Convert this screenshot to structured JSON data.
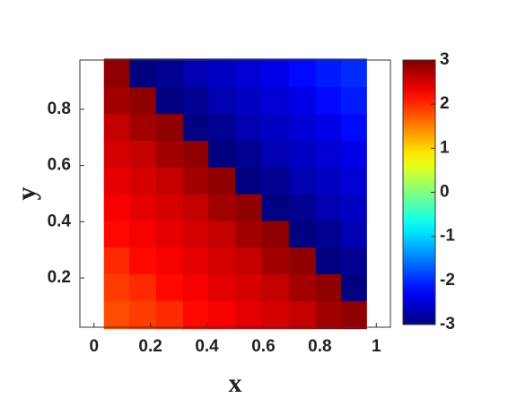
{
  "chart_data": {
    "type": "heatmap",
    "x_label": "x",
    "y_label": "y",
    "x": [
      0.08,
      0.17,
      0.27,
      0.36,
      0.45,
      0.55,
      0.64,
      0.74,
      0.83,
      0.92
    ],
    "y": [
      0.07,
      0.17,
      0.26,
      0.36,
      0.45,
      0.55,
      0.64,
      0.74,
      0.83,
      0.93
    ],
    "z": [
      [
        1.8,
        1.9,
        2.0,
        2.2,
        2.3,
        2.4,
        2.5,
        2.6,
        2.8,
        2.9
      ],
      [
        1.9,
        2.0,
        2.2,
        2.3,
        2.4,
        2.5,
        2.6,
        2.8,
        2.9,
        -3.0
      ],
      [
        2.0,
        2.2,
        2.3,
        2.4,
        2.5,
        2.6,
        2.8,
        2.9,
        -3.0,
        -2.9
      ],
      [
        2.2,
        2.3,
        2.4,
        2.5,
        2.6,
        2.8,
        2.9,
        -3.0,
        -2.9,
        -2.7
      ],
      [
        2.3,
        2.4,
        2.5,
        2.6,
        2.8,
        2.9,
        -3.0,
        -2.9,
        -2.7,
        -2.6
      ],
      [
        2.4,
        2.5,
        2.6,
        2.8,
        2.9,
        -3.0,
        -2.9,
        -2.7,
        -2.6,
        -2.5
      ],
      [
        2.5,
        2.6,
        2.8,
        2.9,
        -3.0,
        -2.9,
        -2.7,
        -2.6,
        -2.5,
        -2.4
      ],
      [
        2.6,
        2.8,
        2.9,
        -3.0,
        -2.9,
        -2.7,
        -2.6,
        -2.5,
        -2.4,
        -2.2
      ],
      [
        2.8,
        2.9,
        -3.0,
        -2.9,
        -2.7,
        -2.6,
        -2.5,
        -2.4,
        -2.2,
        -2.1
      ],
      [
        2.9,
        -3.0,
        -2.9,
        -2.7,
        -2.6,
        -2.5,
        -2.4,
        -2.2,
        -2.1,
        -2.0
      ]
    ],
    "colormap": "jet",
    "xlim": [
      -0.05,
      1.05
    ],
    "xticks": [
      0,
      0.2,
      0.4,
      0.6,
      0.8,
      1
    ],
    "ylim": [
      0.025,
      0.975
    ],
    "yticks": [
      0.2,
      0.4,
      0.6,
      0.8
    ],
    "zlim": [
      -3,
      3
    ],
    "zticks": [
      -3,
      -2,
      -1,
      0,
      1,
      2,
      3
    ]
  }
}
